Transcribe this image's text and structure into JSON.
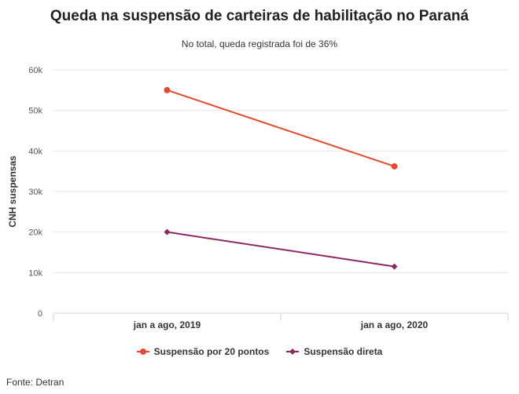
{
  "chart_data": {
    "type": "line",
    "title": "Queda na suspensão de carteiras de habilitação no Paraná",
    "subtitle": "No total, queda registrada foi de 36%",
    "xlabel": "",
    "ylabel": "CNH suspensas",
    "categories": [
      "jan a ago, 2019",
      "jan a ago, 2020"
    ],
    "ylim": [
      0,
      60000
    ],
    "yticks": [
      0,
      10000,
      20000,
      30000,
      40000,
      50000,
      60000
    ],
    "ytick_labels": [
      "0",
      "10k",
      "20k",
      "30k",
      "40k",
      "50k",
      "60k"
    ],
    "series": [
      {
        "name": "Suspensão por 20 pontos",
        "values": [
          55000,
          36200
        ],
        "color": "#e24a33",
        "marker": "circle"
      },
      {
        "name": "Suspensão direta",
        "values": [
          20000,
          11500
        ],
        "color": "#8b2a62",
        "marker": "diamond"
      }
    ],
    "legend": "bottom-center",
    "grid": true
  },
  "source": "Fonte: Detran"
}
